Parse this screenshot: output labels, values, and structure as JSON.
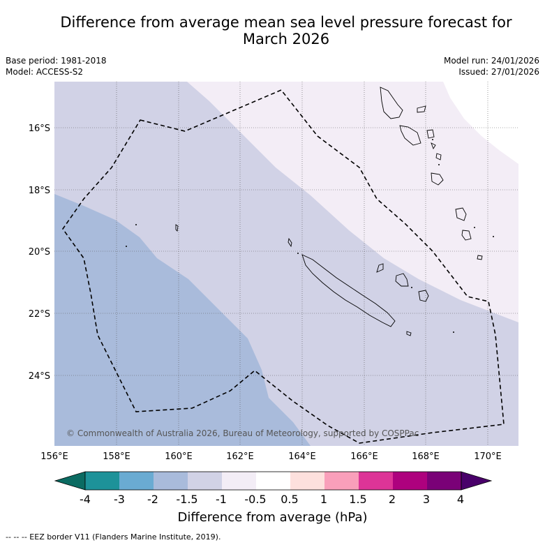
{
  "title": {
    "line1": "Difference from average mean sea level pressure forecast for",
    "line2": "March 2026"
  },
  "meta": {
    "base_period": "Base period: 1981-2018",
    "model": "Model: ACCESS-S2",
    "model_run": "Model run: 24/01/2026",
    "issued": "Issued: 27/01/2026"
  },
  "map": {
    "lon_ticks": [
      "156°E",
      "158°E",
      "160°E",
      "162°E",
      "164°E",
      "166°E",
      "168°E",
      "170°E"
    ],
    "lat_ticks": [
      "16°S",
      "18°S",
      "20°S",
      "22°S",
      "24°S"
    ],
    "copyright": "© Commonwealth of Australia 2026, Bureau of Meteorology, supported by COSPPac",
    "fill_colors": {
      "-2 to -1.5": "#a9bbdb",
      "-1.5 to -1": "#d1d2e6",
      "-1 to -0.5": "#f3edf6",
      "plot_edge": "#ffffff"
    }
  },
  "colorbar": {
    "labels": [
      "-4",
      "-3",
      "-2",
      "-1.5",
      "-1",
      "-0.5",
      "0.5",
      "1",
      "1.5",
      "2",
      "3",
      "4"
    ],
    "colors": [
      "#0b6b62",
      "#1d9299",
      "#6aabd2",
      "#a9bbdb",
      "#d1d2e6",
      "#f3edf6",
      "#ffffff",
      "#fde0dd",
      "#f99fba",
      "#dd3497",
      "#ae017e",
      "#7a0177",
      "#49006a"
    ],
    "title": "Difference from average (hPa)"
  },
  "footnote": "-- -- -- EEZ border V11 (Flanders Marine Institute, 2019)."
}
